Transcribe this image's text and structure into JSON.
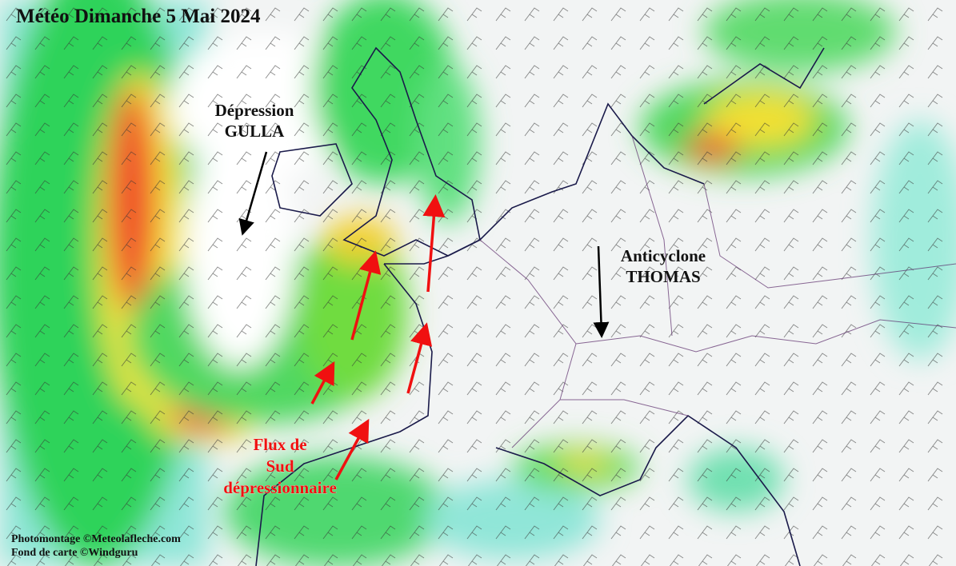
{
  "title": "Météo Dimanche 5 Mai 2024",
  "annotations": [
    {
      "lines": [
        "Dépression",
        "GULLA"
      ]
    },
    {
      "lines": [
        "Anticyclone",
        "THOMAS"
      ]
    },
    {
      "lines": [
        "Flux de",
        "Sud",
        "dépressionnaire"
      ]
    }
  ],
  "credits": [
    "Photomontage ©Meteolafleche.com",
    "Fond de carte ©Windguru"
  ]
}
